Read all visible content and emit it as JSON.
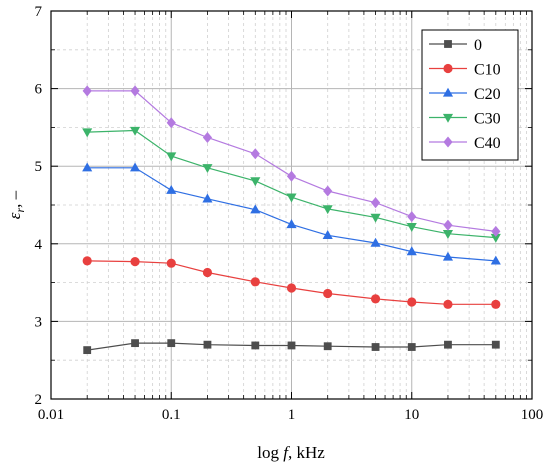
{
  "chart_data": {
    "type": "line",
    "xscale": "log",
    "xlabel_prefix": "log ",
    "xlabel_var": "f",
    "xlabel_suffix": ", kHz",
    "ylabel_main": "ε",
    "ylabel_sub": "r",
    "ylabel_suffix": ", –",
    "xlim": [
      0.01,
      100
    ],
    "ylim": [
      2,
      7
    ],
    "x_ticks": [
      0.01,
      0.1,
      1,
      10,
      100
    ],
    "x_tick_labels": [
      "0.01",
      "0.1",
      "1",
      "10",
      "100"
    ],
    "y_ticks": [
      2,
      3,
      4,
      5,
      6,
      7
    ],
    "y_tick_labels": [
      "2",
      "3",
      "4",
      "5",
      "6",
      "7"
    ],
    "grid": true,
    "legend_position": "top-right",
    "x": [
      0.02,
      0.05,
      0.1,
      0.2,
      0.5,
      1,
      2,
      5,
      10,
      20,
      50
    ],
    "series": [
      {
        "name": "0",
        "color": "#4d4d4d",
        "marker": "square",
        "values": [
          2.63,
          2.72,
          2.72,
          2.7,
          2.69,
          2.69,
          2.68,
          2.67,
          2.67,
          2.7,
          2.7
        ]
      },
      {
        "name": "C10",
        "color": "#e8403f",
        "marker": "circle",
        "values": [
          3.78,
          3.77,
          3.75,
          3.63,
          3.51,
          3.43,
          3.36,
          3.29,
          3.25,
          3.22,
          3.22
        ]
      },
      {
        "name": "C20",
        "color": "#2f6fe3",
        "marker": "triangle-up",
        "values": [
          4.98,
          4.98,
          4.69,
          4.58,
          4.44,
          4.25,
          4.11,
          4.01,
          3.9,
          3.83,
          3.78
        ]
      },
      {
        "name": "C30",
        "color": "#3cb36a",
        "marker": "triangle-down",
        "values": [
          5.44,
          5.46,
          5.13,
          4.98,
          4.81,
          4.6,
          4.45,
          4.34,
          4.22,
          4.13,
          4.08
        ]
      },
      {
        "name": "C40",
        "color": "#b47ae0",
        "marker": "diamond",
        "values": [
          5.97,
          5.97,
          5.56,
          5.37,
          5.16,
          4.87,
          4.68,
          4.53,
          4.35,
          4.24,
          4.16
        ]
      }
    ]
  }
}
